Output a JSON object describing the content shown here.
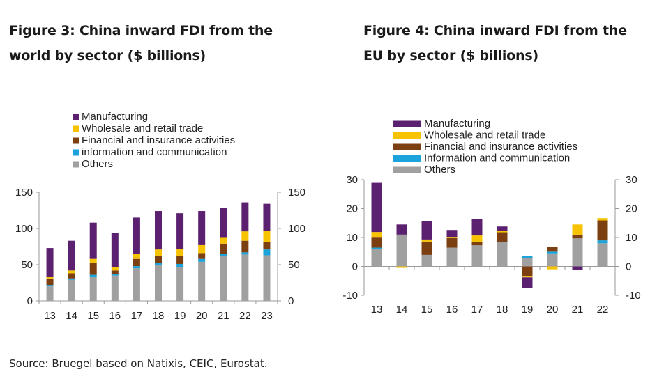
{
  "colors": {
    "manufacturing": "#5b2070",
    "wholesale": "#f7c300",
    "financial": "#7b3f12",
    "info": "#1ba3dc",
    "others": "#a0a0a0",
    "axis": "#9a9a9a"
  },
  "source": "Source: Bruegel based on Natixis, CEIC, Eurostat.",
  "chart_data": [
    {
      "type": "bar",
      "stacked": true,
      "title": "Figure 3: China inward FDI from the world by sector ($ billions)",
      "categories": [
        "13",
        "14",
        "15",
        "16",
        "17",
        "18",
        "19",
        "20",
        "21",
        "22",
        "23"
      ],
      "ylim": [
        0,
        150
      ],
      "yticks": [
        "0",
        "50",
        "100",
        "150"
      ],
      "legend": [
        "Manufacturing",
        "Wholesale and retail trade",
        "Financial and insurance activities",
        "information and communication",
        "Others"
      ],
      "series": [
        {
          "name": "Others",
          "key": "others",
          "values": [
            20,
            29,
            33,
            35,
            45,
            49,
            47,
            54,
            62,
            64,
            63
          ]
        },
        {
          "name": "information and communication",
          "key": "info",
          "values": [
            2,
            2,
            3,
            2,
            3,
            3,
            4,
            4,
            3,
            3,
            8
          ]
        },
        {
          "name": "Financial and insurance activities",
          "key": "financial",
          "values": [
            9,
            7,
            17,
            5,
            10,
            10,
            11,
            8,
            14,
            16,
            10
          ]
        },
        {
          "name": "Wholesale and retail trade",
          "key": "wholesale",
          "values": [
            2,
            4,
            5,
            5,
            7,
            9,
            10,
            11,
            9,
            13,
            16
          ]
        },
        {
          "name": "Manufacturing",
          "key": "manufacturing",
          "values": [
            40,
            41,
            50,
            47,
            50,
            53,
            49,
            47,
            40,
            40,
            37
          ]
        }
      ]
    },
    {
      "type": "bar",
      "stacked": true,
      "title": "Figure 4: China inward FDI from the EU by sector ($ billions)",
      "categories": [
        "13",
        "14",
        "15",
        "16",
        "17",
        "18",
        "19",
        "20",
        "21",
        "22"
      ],
      "ylim": [
        -10,
        30
      ],
      "yticks": [
        "-10",
        "0",
        "10",
        "20",
        "30"
      ],
      "legend": [
        "Manufacturing",
        "Wholesale and retail trade",
        "Financial and insurance activities",
        "Information and communication",
        "Others"
      ],
      "series": [
        {
          "name": "Others",
          "key": "others",
          "values": [
            6,
            11,
            4,
            6.5,
            7.3,
            8.5,
            3,
            4.5,
            9.7,
            8
          ]
        },
        {
          "name": "Information and communication",
          "key": "info",
          "values": [
            0.5,
            0,
            0,
            0,
            0,
            0,
            0.5,
            0.6,
            0,
            1
          ]
        },
        {
          "name": "Financial and insurance activities",
          "key": "financial",
          "values": [
            3.7,
            0,
            4.6,
            3.3,
            1.2,
            3.3,
            -3.3,
            1.6,
            1.3,
            6.9
          ]
        },
        {
          "name": "Wholesale and retail trade",
          "key": "wholesale",
          "values": [
            1.7,
            -0.5,
            0.7,
            0.4,
            2.2,
            0.4,
            -0.5,
            -1,
            3.5,
            0.8
          ]
        },
        {
          "name": "Manufacturing",
          "key": "manufacturing",
          "values": [
            17,
            3.5,
            6.3,
            2.4,
            5.6,
            1.6,
            -3.7,
            0,
            -1.2,
            0
          ]
        }
      ]
    }
  ]
}
